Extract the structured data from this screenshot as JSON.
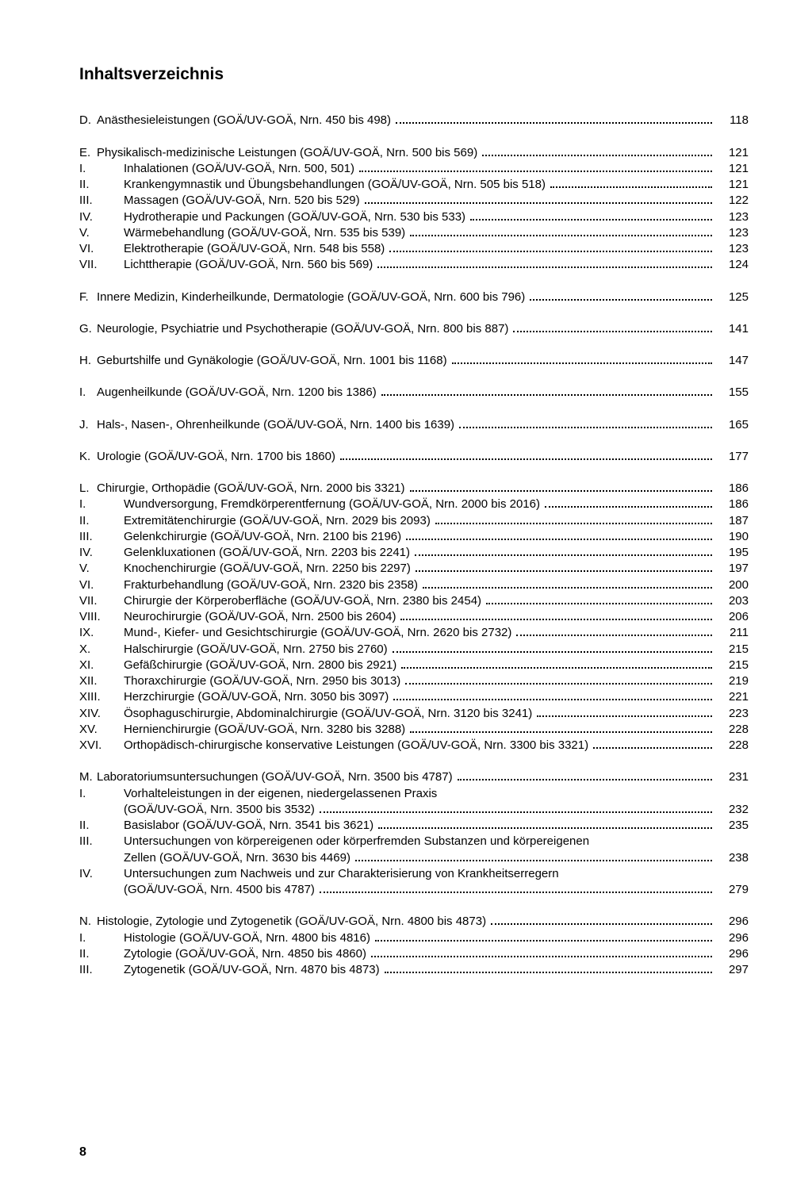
{
  "title": "Inhaltsverzeichnis",
  "page_number": "8",
  "groups": [
    {
      "rows": [
        {
          "marker": "D.",
          "markerClass": "narrow",
          "label": "Anästhesieleistungen (GOÄ/UV-GOÄ, Nrn. 450 bis 498)",
          "page": "118"
        }
      ]
    },
    {
      "rows": [
        {
          "marker": "E.",
          "markerClass": "narrow",
          "label": "Physikalisch-medizinische Leistungen (GOÄ/UV-GOÄ, Nrn. 500 bis 569)",
          "page": "121"
        },
        {
          "marker": "I.",
          "label": "Inhalationen (GOÄ/UV-GOÄ, Nrn. 500, 501)",
          "page": "121"
        },
        {
          "marker": "II.",
          "label": "Krankengymnastik und Übungsbehandlungen (GOÄ/UV-GOÄ, Nrn. 505 bis 518)",
          "page": "121"
        },
        {
          "marker": "III.",
          "label": "Massagen (GOÄ/UV-GOÄ, Nrn. 520 bis 529)",
          "page": "122"
        },
        {
          "marker": "IV.",
          "label": "Hydrotherapie und Packungen (GOÄ/UV-GOÄ, Nrn. 530 bis 533)",
          "page": "123"
        },
        {
          "marker": "V.",
          "label": "Wärmebehandlung (GOÄ/UV-GOÄ, Nrn. 535 bis 539)",
          "page": "123"
        },
        {
          "marker": "VI.",
          "label": "Elektrotherapie (GOÄ/UV-GOÄ, Nrn. 548 bis 558)",
          "page": "123"
        },
        {
          "marker": "VII.",
          "label": "Lichttherapie (GOÄ/UV-GOÄ, Nrn. 560 bis 569)",
          "page": "124"
        }
      ]
    },
    {
      "rows": [
        {
          "marker": "F.",
          "markerClass": "narrow",
          "label": "Innere Medizin, Kinderheilkunde, Dermatologie (GOÄ/UV-GOÄ, Nrn. 600 bis 796)",
          "page": "125"
        }
      ]
    },
    {
      "rows": [
        {
          "marker": "G.",
          "markerClass": "narrow",
          "label": "Neurologie, Psychiatrie und Psychotherapie (GOÄ/UV-GOÄ, Nrn. 800 bis 887)",
          "page": "141"
        }
      ]
    },
    {
      "rows": [
        {
          "marker": "H.",
          "markerClass": "narrow",
          "label": "Geburtshilfe und Gynäkologie (GOÄ/UV-GOÄ, Nrn. 1001 bis 1168)",
          "page": "147"
        }
      ]
    },
    {
      "rows": [
        {
          "marker": "I.",
          "markerClass": "narrow",
          "label": "Augenheilkunde (GOÄ/UV-GOÄ, Nrn. 1200 bis 1386)",
          "page": "155"
        }
      ]
    },
    {
      "rows": [
        {
          "marker": "J.",
          "markerClass": "narrow",
          "label": "Hals-, Nasen-, Ohrenheilkunde (GOÄ/UV-GOÄ, Nrn. 1400 bis 1639)",
          "page": "165"
        }
      ]
    },
    {
      "rows": [
        {
          "marker": "K.",
          "markerClass": "narrow",
          "label": "Urologie (GOÄ/UV-GOÄ, Nrn. 1700 bis 1860)",
          "page": "177"
        }
      ]
    },
    {
      "rows": [
        {
          "marker": "L.",
          "markerClass": "narrow",
          "label": "Chirurgie, Orthopädie (GOÄ/UV-GOÄ, Nrn. 2000 bis 3321)",
          "page": "186"
        },
        {
          "marker": "I.",
          "label": "Wundversorgung, Fremdkörperentfernung (GOÄ/UV-GOÄ, Nrn. 2000 bis 2016)",
          "page": "186"
        },
        {
          "marker": "II.",
          "label": "Extremitätenchirurgie (GOÄ/UV-GOÄ, Nrn. 2029 bis 2093)",
          "page": "187"
        },
        {
          "marker": "III.",
          "label": "Gelenkchirurgie (GOÄ/UV-GOÄ, Nrn. 2100 bis 2196)",
          "page": "190"
        },
        {
          "marker": "IV.",
          "label": "Gelenkluxationen (GOÄ/UV-GOÄ, Nrn. 2203 bis 2241)",
          "page": "195"
        },
        {
          "marker": "V.",
          "label": "Knochenchirurgie (GOÄ/UV-GOÄ, Nrn. 2250 bis 2297)",
          "page": "197"
        },
        {
          "marker": "VI.",
          "label": "Frakturbehandlung (GOÄ/UV-GOÄ, Nrn. 2320 bis 2358)",
          "page": "200"
        },
        {
          "marker": "VII.",
          "label": "Chirurgie der Körperoberfläche (GOÄ/UV-GOÄ, Nrn. 2380 bis 2454)",
          "page": "203"
        },
        {
          "marker": "VIII.",
          "label": "Neurochirurgie (GOÄ/UV-GOÄ, Nrn. 2500 bis 2604)",
          "page": "206"
        },
        {
          "marker": "IX.",
          "label": "Mund-, Kiefer- und Gesichtschirurgie (GOÄ/UV-GOÄ, Nrn. 2620 bis 2732)",
          "page": "211"
        },
        {
          "marker": "X.",
          "label": "Halschirurgie (GOÄ/UV-GOÄ, Nrn. 2750 bis 2760)",
          "page": "215"
        },
        {
          "marker": "XI.",
          "label": "Gefäßchirurgie (GOÄ/UV-GOÄ, Nrn. 2800 bis 2921)",
          "page": "215"
        },
        {
          "marker": "XII.",
          "label": "Thoraxchirurgie (GOÄ/UV-GOÄ, Nrn. 2950 bis 3013)",
          "page": "219"
        },
        {
          "marker": "XIII.",
          "label": "Herzchirurgie (GOÄ/UV-GOÄ, Nrn. 3050 bis 3097)",
          "page": "221"
        },
        {
          "marker": "XIV.",
          "label": "Ösophaguschirurgie, Abdominalchirurgie (GOÄ/UV-GOÄ, Nrn. 3120 bis 3241)",
          "page": "223"
        },
        {
          "marker": "XV.",
          "label": "Hernienchirurgie (GOÄ/UV-GOÄ, Nrn. 3280 bis 3288)",
          "page": "228"
        },
        {
          "marker": "XVI.",
          "label": "Orthopädisch-chirurgische konservative Leistungen (GOÄ/UV-GOÄ, Nrn. 3300 bis 3321)",
          "page": "228"
        }
      ]
    },
    {
      "rows": [
        {
          "marker": "M.",
          "markerClass": "narrow",
          "label": "Laboratoriumsuntersuchungen (GOÄ/UV-GOÄ, Nrn. 3500 bis 4787)",
          "page": "231"
        },
        {
          "marker": "I.",
          "label": "Vorhalteleistungen in der eigenen, niedergelassenen Praxis",
          "nopage": true
        },
        {
          "cont": true,
          "label": "(GOÄ/UV-GOÄ, Nrn. 3500 bis 3532)",
          "page": "232"
        },
        {
          "marker": "II.",
          "label": "Basislabor (GOÄ/UV-GOÄ, Nrn. 3541 bis 3621)",
          "page": "235"
        },
        {
          "marker": "III.",
          "label": "Untersuchungen von körpereigenen oder körperfremden Substanzen und körpereigenen",
          "nopage": true
        },
        {
          "cont": true,
          "label": "Zellen (GOÄ/UV-GOÄ, Nrn. 3630 bis 4469)",
          "page": "238"
        },
        {
          "marker": "IV.",
          "label": "Untersuchungen zum Nachweis und zur Charakterisierung von Krankheitserregern",
          "nopage": true
        },
        {
          "cont": true,
          "label": "(GOÄ/UV-GOÄ, Nrn. 4500 bis 4787)",
          "page": "279"
        }
      ]
    },
    {
      "rows": [
        {
          "marker": "N.",
          "markerClass": "narrow",
          "label": "Histologie, Zytologie und Zytogenetik (GOÄ/UV-GOÄ, Nrn. 4800 bis 4873)",
          "page": "296"
        },
        {
          "marker": "I.",
          "label": "Histologie (GOÄ/UV-GOÄ, Nrn. 4800 bis 4816)",
          "page": "296"
        },
        {
          "marker": "II.",
          "label": "Zytologie (GOÄ/UV-GOÄ, Nrn. 4850 bis 4860)",
          "page": "296"
        },
        {
          "marker": "III.",
          "label": "Zytogenetik (GOÄ/UV-GOÄ, Nrn. 4870 bis 4873)",
          "page": "297"
        }
      ]
    }
  ]
}
